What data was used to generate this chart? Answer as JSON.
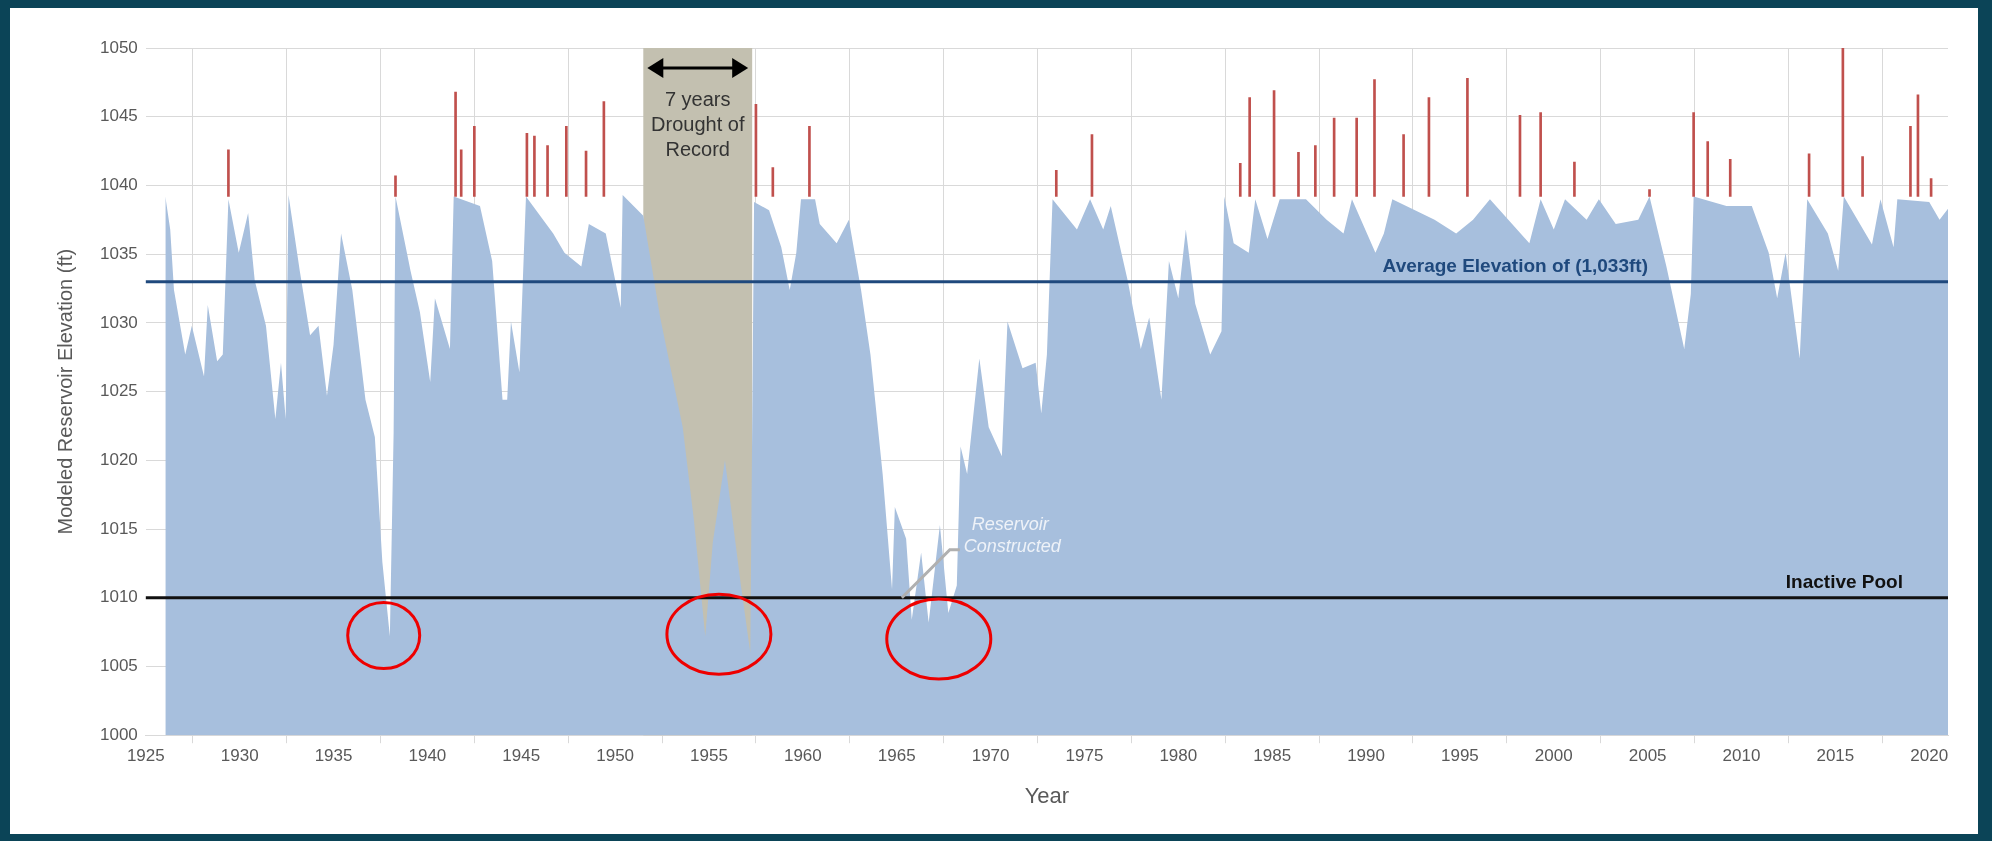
{
  "chart_data": {
    "type": "area",
    "xlabel": "Year",
    "ylabel": "Modeled Reservoir Elevation (ft)",
    "xlim": [
      1925,
      2021
    ],
    "xticks": [
      1925,
      1930,
      1935,
      1940,
      1945,
      1950,
      1955,
      1960,
      1965,
      1970,
      1975,
      1980,
      1985,
      1990,
      1995,
      2000,
      2005,
      2010,
      2015,
      2020
    ],
    "ylim": [
      1000,
      1050
    ],
    "yticks": [
      1000,
      1005,
      1010,
      1015,
      1020,
      1025,
      1030,
      1035,
      1040,
      1045,
      1050
    ],
    "grid": true,
    "legend": false,
    "series": [
      {
        "color": "#a7bfdd",
        "x": [
          1926.04,
          1926.3,
          1926.5,
          1927.1,
          1927.45,
          1928.1,
          1928.3,
          1928.8,
          1929.1,
          1929.4,
          1929.95,
          1930.45,
          1930.8,
          1931.4,
          1931.9,
          1932.2,
          1932.45,
          1932.6,
          1933.2,
          1933.75,
          1934.2,
          1934.65,
          1935.0,
          1935.4,
          1936.0,
          1936.7,
          1937.2,
          1937.6,
          1938.0,
          1938.2,
          1938.3,
          1939.1,
          1939.6,
          1940.15,
          1940.4,
          1941.2,
          1941.4,
          1942.8,
          1943.45,
          1944.0,
          1944.25,
          1944.45,
          1944.9,
          1945.25,
          1946.7,
          1947.3,
          1948.2,
          1948.6,
          1949.5,
          1950.3,
          1950.4,
          1951.5,
          1952.4,
          1953.6,
          1954.2,
          1954.8,
          1955.2,
          1955.85,
          1956.7,
          1957.2,
          1957.4,
          1958.2,
          1958.85,
          1959.3,
          1959.65,
          1959.9,
          1960.65,
          1960.9,
          1961.8,
          1962.45,
          1963.1,
          1963.6,
          1964.25,
          1964.75,
          1964.9,
          1965.5,
          1965.8,
          1966.3,
          1966.7,
          1967.3,
          1967.75,
          1968.2,
          1968.4,
          1968.75,
          1969.4,
          1969.9,
          1970.6,
          1970.9,
          1971.7,
          1972.4,
          1972.7,
          1973.0,
          1973.3,
          1974.6,
          1975.3,
          1976.0,
          1976.4,
          1977.3,
          1978.0,
          1978.45,
          1979.1,
          1979.5,
          1980.0,
          1980.4,
          1980.9,
          1981.7,
          1982.3,
          1982.45,
          1982.95,
          1983.75,
          1984.1,
          1984.75,
          1985.4,
          1986.8,
          1987.9,
          1988.8,
          1989.25,
          1990.5,
          1990.95,
          1991.4,
          1993.65,
          1994.8,
          1995.7,
          1996.6,
          1998.7,
          1999.3,
          2000.0,
          2000.6,
          2001.75,
          2002.4,
          2003.3,
          2004.5,
          2005.1,
          2006.0,
          2006.95,
          2007.3,
          2007.45,
          2009.2,
          2010.55,
          2011.45,
          2011.9,
          2012.35,
          2013.1,
          2013.5,
          2014.6,
          2015.15,
          2015.45,
          2016.95,
          2017.4,
          2018.1,
          2018.3,
          2020.0,
          2020.55,
          2021.0
        ],
        "values": [
          1039.2,
          1036.8,
          1032.4,
          1027.7,
          1029.8,
          1026.1,
          1031.3,
          1027.2,
          1027.7,
          1039.0,
          1035.1,
          1038.0,
          1033.1,
          1029.8,
          1023.0,
          1027.1,
          1023.0,
          1039.3,
          1033.8,
          1029.1,
          1029.8,
          1024.7,
          1028.4,
          1036.5,
          1032.4,
          1024.4,
          1021.7,
          1012.6,
          1007.2,
          1022.0,
          1039.2,
          1033.8,
          1030.8,
          1025.7,
          1031.8,
          1028.1,
          1039.2,
          1038.5,
          1034.5,
          1024.4,
          1024.4,
          1030.1,
          1026.4,
          1039.2,
          1036.5,
          1035.1,
          1034.1,
          1037.2,
          1036.5,
          1031.1,
          1039.3,
          1037.8,
          1030.4,
          1022.4,
          1015.6,
          1007.2,
          1014.0,
          1020.0,
          1010.9,
          1006.0,
          1038.8,
          1038.2,
          1035.5,
          1032.4,
          1035.1,
          1039.0,
          1039.0,
          1037.2,
          1035.8,
          1037.5,
          1032.4,
          1027.7,
          1019.0,
          1010.6,
          1016.6,
          1014.3,
          1008.4,
          1013.3,
          1008.2,
          1015.3,
          1008.9,
          1010.9,
          1021.0,
          1019.0,
          1027.4,
          1022.4,
          1020.3,
          1030.1,
          1026.7,
          1027.1,
          1023.4,
          1027.7,
          1039.0,
          1036.8,
          1039.0,
          1036.8,
          1038.5,
          1033.1,
          1028.1,
          1030.4,
          1024.4,
          1034.5,
          1031.8,
          1036.8,
          1031.4,
          1027.7,
          1029.4,
          1039.2,
          1035.8,
          1035.1,
          1039.0,
          1036.1,
          1039.0,
          1039.0,
          1037.5,
          1036.5,
          1039.0,
          1035.1,
          1036.5,
          1039.0,
          1037.5,
          1036.5,
          1037.5,
          1039.0,
          1035.8,
          1039.0,
          1036.8,
          1039.0,
          1037.5,
          1039.0,
          1037.2,
          1037.5,
          1039.2,
          1034.1,
          1028.1,
          1032.1,
          1039.2,
          1038.5,
          1038.5,
          1035.1,
          1031.8,
          1035.1,
          1027.4,
          1039.0,
          1036.5,
          1033.8,
          1039.2,
          1035.7,
          1039.0,
          1035.5,
          1039.0,
          1038.8,
          1037.5,
          1038.3
        ]
      },
      {
        "type": "bar",
        "color": "#c0504d",
        "x": [
          1929.4,
          1938.3,
          1941.5,
          1941.8,
          1942.5,
          1945.3,
          1945.7,
          1946.4,
          1947.4,
          1948.45,
          1949.4,
          1957.5,
          1958.4,
          1960.35,
          1973.5,
          1975.4,
          1983.3,
          1983.8,
          1985.1,
          1986.4,
          1987.3,
          1988.3,
          1989.5,
          1990.45,
          1992.0,
          1993.35,
          1995.4,
          1998.2,
          1999.3,
          2001.1,
          2005.1,
          2007.45,
          2008.2,
          2009.4,
          2013.6,
          2015.4,
          2016.45,
          2019.0,
          2019.4,
          2020.1
        ],
        "base": [
          1039.2,
          1039.2,
          1039.2,
          1039.2,
          1039.2,
          1039.2,
          1039.2,
          1039.2,
          1039.2,
          1039.2,
          1039.2,
          1039.2,
          1039.2,
          1039.2,
          1039.2,
          1039.2,
          1039.2,
          1039.2,
          1039.2,
          1039.2,
          1039.2,
          1039.2,
          1039.2,
          1039.2,
          1039.2,
          1039.2,
          1039.2,
          1039.2,
          1039.2,
          1039.2,
          1039.2,
          1039.2,
          1039.2,
          1039.2,
          1039.2,
          1039.2,
          1039.2,
          1039.2,
          1039.2,
          1039.2
        ],
        "values": [
          3.4,
          1.5,
          7.6,
          3.4,
          5.1,
          4.6,
          4.4,
          3.7,
          5.1,
          3.3,
          6.9,
          6.7,
          2.1,
          5.1,
          1.9,
          4.5,
          2.4,
          7.2,
          7.7,
          3.2,
          3.7,
          5.7,
          5.7,
          8.5,
          4.5,
          7.2,
          8.6,
          5.9,
          6.1,
          2.5,
          0.5,
          6.1,
          4.0,
          2.7,
          3.1,
          10.8,
          2.9,
          5.1,
          7.4,
          1.3
        ]
      }
    ],
    "ref_lines": [
      {
        "axis": "y",
        "value": 1033,
        "label": "Average Elevation of (1,033ft)",
        "color": "#1f497d"
      },
      {
        "axis": "y",
        "value": 1010,
        "label": "Inactive Pool",
        "color": "#111111"
      }
    ],
    "bands": [
      {
        "axis": "x",
        "from": 1951.5,
        "to": 1957.3,
        "label": "7 years Drought of Record",
        "color": "#c3c0b0"
      }
    ],
    "annotations": [
      "Reservoir Constructed"
    ]
  }
}
